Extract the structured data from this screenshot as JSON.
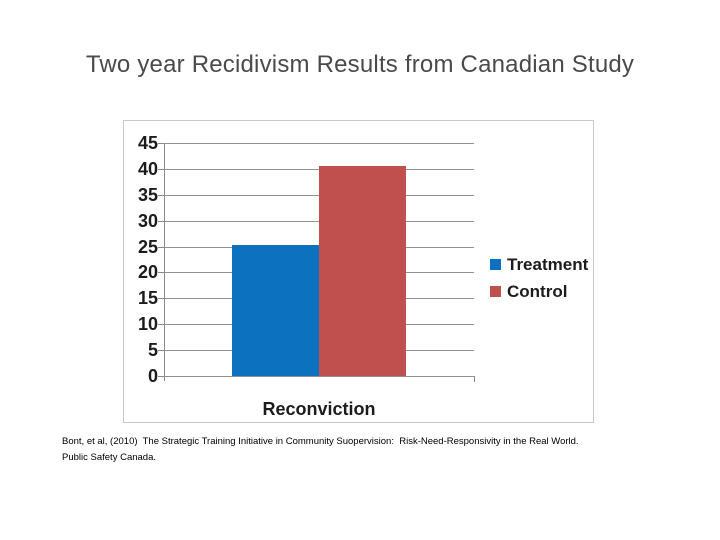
{
  "slide": {
    "title": "Two year Recidivism Results from Canadian Study",
    "citation_line1": "Bont, et al, (2010)  The Strategic Training Initiative in Community Suopervision:  Risk-Need-Responsivity in the Real World.",
    "citation_line2": "Public Safety Canada."
  },
  "colors": {
    "treatment_blue": "#0c72bf",
    "control_red": "#c0504d",
    "title_gray": "#4a4a4a",
    "gridline_gray": "#919191",
    "chart_border_gray": "#c9c9c9",
    "axis_text": "#1c1c1c"
  },
  "chart_data": {
    "type": "bar",
    "title": "",
    "categories": [
      "Reconviction"
    ],
    "series": [
      {
        "name": "Treatment",
        "value": 25.3,
        "color": "#0c72bf"
      },
      {
        "name": "Control",
        "value": 40.5,
        "color": "#c0504d"
      }
    ],
    "xlabel": "Reconviction",
    "ylabel": "",
    "ylim": [
      0,
      45
    ],
    "ytick_step": 5,
    "yticks": [
      45,
      40,
      35,
      30,
      25,
      20,
      15,
      10,
      5,
      0
    ],
    "grid": true,
    "legend_position": "right",
    "legend_entries": [
      "Treatment",
      "Control"
    ]
  }
}
